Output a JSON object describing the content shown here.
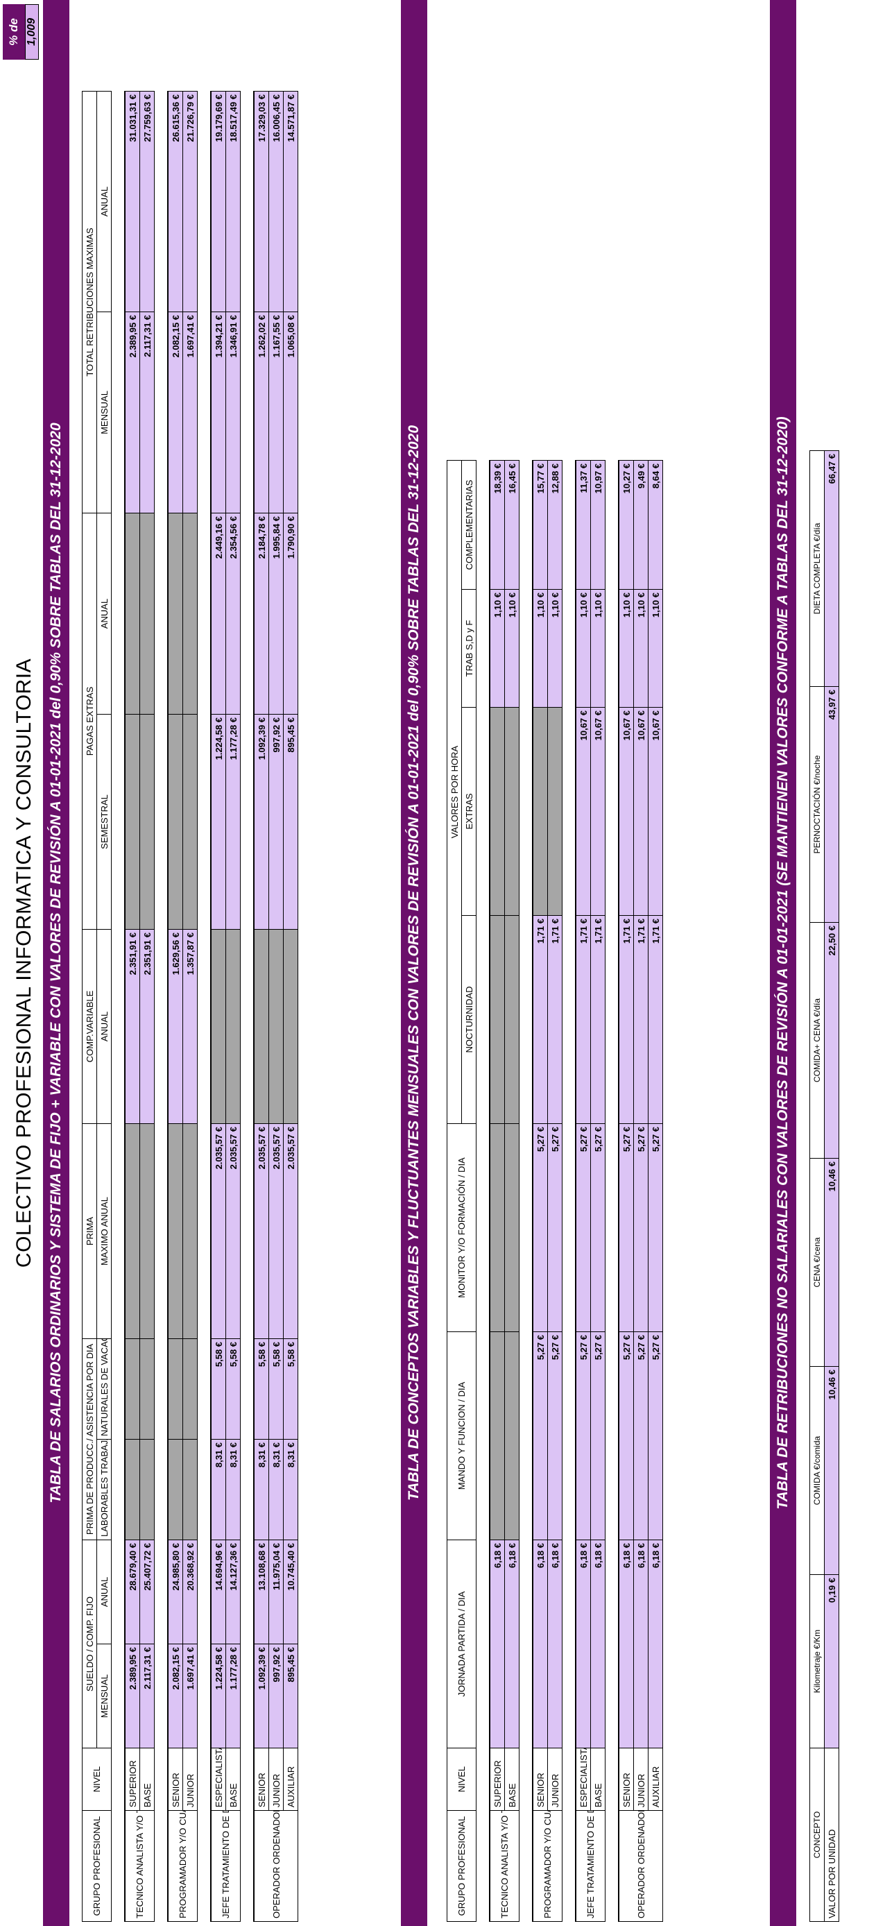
{
  "main_title": "COLECTIVO PROFESIONAL INFORMATICA Y CONSULTORIA",
  "revision": {
    "label": "% de revisión",
    "value": "1,009"
  },
  "table1": {
    "banner": "TABLA DE SALARIOS ORDINARIOS Y SISTEMA DE FIJO + VARIABLE CON VALORES DE REVISIÓN A 01-01-2021 del 0,90% SOBRE TABLAS DEL 31-12-2020",
    "headers": {
      "grupo": "GRUPO PROFESIONAL",
      "nivel": "NIVEL",
      "sueldo": "SUELDO / COMP. FIJO",
      "mensual": "MENSUAL",
      "anual": "ANUAL",
      "prima_prod": "PRIMA DE PRODUCC./ ASISTENCIA POR DIA",
      "laborables": "LABORABLES TRABAJADOS",
      "naturales": "NATURALES DE VACACIONES",
      "prima": "PRIMA",
      "maximo_anual": "MAXIMO ANUAL",
      "comp_variable": "COMP.VARIABLE",
      "cv_anual": "ANUAL",
      "pagas_extras": "PAGAS EXTRAS",
      "semestral": "SEMESTRAL",
      "pe_anual": "ANUAL",
      "total": "TOTAL RETRIBUCIONES MAXIMAS",
      "t_mensual": "MENSUAL",
      "t_anual": "ANUAL"
    },
    "groups": [
      {
        "grupo": "TECNICO ANALISTA Y/O TITULADO",
        "rows": [
          {
            "nivel": "SUPERIOR",
            "mensual": "2.389,95 €",
            "anual": "28.679,40 €",
            "laborables": "",
            "naturales": "",
            "prima": "",
            "cv_anual": "2.351,91 €",
            "semestral": "",
            "pe_anual": "",
            "t_mensual": "2.389,95 €",
            "t_anual": "31.031,31 €"
          },
          {
            "nivel": "BASE",
            "mensual": "2.117,31 €",
            "anual": "25.407,72 €",
            "laborables": "",
            "naturales": "",
            "prima": "",
            "cv_anual": "2.351,91 €",
            "semestral": "",
            "pe_anual": "",
            "t_mensual": "2.117,31 €",
            "t_anual": "27.759,63 €"
          }
        ]
      },
      {
        "grupo": "PROGRAMADOR Y/O CUADRO TECNICO",
        "rows": [
          {
            "nivel": "SENIOR",
            "mensual": "2.082,15 €",
            "anual": "24.985,80 €",
            "laborables": "",
            "naturales": "",
            "prima": "",
            "cv_anual": "1.629,56 €",
            "semestral": "",
            "pe_anual": "",
            "t_mensual": "2.082,15 €",
            "t_anual": "26.615,36 €"
          },
          {
            "nivel": "JUNIOR",
            "mensual": "1.697,41 €",
            "anual": "20.368,92 €",
            "laborables": "",
            "naturales": "",
            "prima": "",
            "cv_anual": "1.357,87 €",
            "semestral": "",
            "pe_anual": "",
            "t_mensual": "1.697,41 €",
            "t_anual": "21.726,79 €"
          }
        ]
      },
      {
        "grupo": "JEFE TRATAMIENTO DE DATOS Y/O ENCUESTAS",
        "rows": [
          {
            "nivel": "ESPECIALISTA",
            "mensual": "1.224,58 €",
            "anual": "14.694,96 €",
            "laborables": "8,31 €",
            "naturales": "5,58 €",
            "prima": "2.035,57 €",
            "cv_anual": "",
            "semestral": "1.224,58 €",
            "pe_anual": "2.449,16 €",
            "t_mensual": "1.394,21 €",
            "t_anual": "19.179,69 €"
          },
          {
            "nivel": "BASE",
            "mensual": "1.177,28 €",
            "anual": "14.127,36 €",
            "laborables": "8,31 €",
            "naturales": "5,58 €",
            "prima": "2.035,57 €",
            "cv_anual": "",
            "semestral": "1.177,28 €",
            "pe_anual": "2.354,56 €",
            "t_mensual": "1.346,91 €",
            "t_anual": "18.517,49 €"
          }
        ]
      },
      {
        "grupo": "OPERADOR ORDENADOR Y/O ENCUESTADOR",
        "rows": [
          {
            "nivel": "SENIOR",
            "mensual": "1.092,39 €",
            "anual": "13.108,68 €",
            "laborables": "8,31 €",
            "naturales": "5,58 €",
            "prima": "2.035,57 €",
            "cv_anual": "",
            "semestral": "1.092,39 €",
            "pe_anual": "2.184,78 €",
            "t_mensual": "1.262,02 €",
            "t_anual": "17.329,03 €"
          },
          {
            "nivel": "JUNIOR",
            "mensual": "997,92 €",
            "anual": "11.975,04 €",
            "laborables": "8,31 €",
            "naturales": "5,58 €",
            "prima": "2.035,57 €",
            "cv_anual": "",
            "semestral": "997,92 €",
            "pe_anual": "1.995,84 €",
            "t_mensual": "1.167,55 €",
            "t_anual": "16.006,45 €"
          },
          {
            "nivel": "AUXILIAR",
            "mensual": "895,45 €",
            "anual": "10.745,40 €",
            "laborables": "8,31 €",
            "naturales": "5,58 €",
            "prima": "2.035,57 €",
            "cv_anual": "",
            "semestral": "895,45 €",
            "pe_anual": "1.790,90 €",
            "t_mensual": "1.065,08 €",
            "t_anual": "14.571,87 €"
          }
        ]
      }
    ]
  },
  "table2": {
    "banner": "TABLA DE CONCEPTOS VARIABLES Y FLUCTUANTES MENSUALES CON VALORES DE REVISIÓN A 01-01-2021 del 0,90% SOBRE TABLAS DEL 31-12-2020",
    "headers": {
      "grupo": "GRUPO PROFESIONAL",
      "nivel": "NIVEL",
      "jornada": "JORNADA PARTIDA / DIA",
      "mando": "MANDO Y FUNCION / DIA",
      "monitor": "MONITOR Y/O FORMACIÓN / DIA",
      "valores_hora": "VALORES POR HORA",
      "nocturnidad": "NOCTURNIDAD",
      "extras": "EXTRAS",
      "trab": "TRAB S,D y F",
      "complementarias": "COMPLEMENTARIAS"
    },
    "groups": [
      {
        "grupo": "TECNICO ANALISTA Y/O TITULADO",
        "rows": [
          {
            "nivel": "SUPERIOR",
            "jornada": "6,18 €",
            "mando": "",
            "monitor": "",
            "nocturnidad": "",
            "extras": "",
            "trab": "1,10 €",
            "complementarias": "18,39 €"
          },
          {
            "nivel": "BASE",
            "jornada": "6,18 €",
            "mando": "",
            "monitor": "",
            "nocturnidad": "",
            "extras": "",
            "trab": "1,10 €",
            "complementarias": "16,45 €"
          }
        ]
      },
      {
        "grupo": "PROGRAMADOR Y/O CUADRO TECNICO",
        "rows": [
          {
            "nivel": "SENIOR",
            "jornada": "6,18 €",
            "mando": "5,27 €",
            "monitor": "5,27 €",
            "nocturnidad": "1,71 €",
            "extras": "",
            "trab": "1,10 €",
            "complementarias": "15,77 €"
          },
          {
            "nivel": "JUNIOR",
            "jornada": "6,18 €",
            "mando": "5,27 €",
            "monitor": "5,27 €",
            "nocturnidad": "1,71 €",
            "extras": "",
            "trab": "1,10 €",
            "complementarias": "12,88 €"
          }
        ]
      },
      {
        "grupo": "JEFE TRATAMIENTO DE DATOS Y/O ENCUESTAS",
        "rows": [
          {
            "nivel": "ESPECIALISTA",
            "jornada": "6,18 €",
            "mando": "5,27 €",
            "monitor": "5,27 €",
            "nocturnidad": "1,71 €",
            "extras": "10,67 €",
            "trab": "1,10 €",
            "complementarias": "11,37 €"
          },
          {
            "nivel": "BASE",
            "jornada": "6,18 €",
            "mando": "5,27 €",
            "monitor": "5,27 €",
            "nocturnidad": "1,71 €",
            "extras": "10,67 €",
            "trab": "1,10 €",
            "complementarias": "10,97 €"
          }
        ]
      },
      {
        "grupo": "OPERADOR ORDENADOR Y/O ENCUESTADOR",
        "rows": [
          {
            "nivel": "SENIOR",
            "jornada": "6,18 €",
            "mando": "5,27 €",
            "monitor": "5,27 €",
            "nocturnidad": "1,71 €",
            "extras": "10,67 €",
            "trab": "1,10 €",
            "complementarias": "10,27 €"
          },
          {
            "nivel": "JUNIOR",
            "jornada": "6,18 €",
            "mando": "5,27 €",
            "monitor": "5,27 €",
            "nocturnidad": "1,71 €",
            "extras": "10,67 €",
            "trab": "1,10 €",
            "complementarias": "9,49 €"
          },
          {
            "nivel": "AUXILIAR",
            "jornada": "6,18 €",
            "mando": "5,27 €",
            "monitor": "5,27 €",
            "nocturnidad": "1,71 €",
            "extras": "10,67 €",
            "trab": "1,10 €",
            "complementarias": "8,64 €"
          }
        ]
      }
    ]
  },
  "table3": {
    "banner": "TABLA DE RETRIBUCIONES NO SALARIALES CON VALORES DE REVISIÓN A 01-01-2021 (SE MANTIENEN VALORES CONFORME A TABLAS DEL 31-12-2020)",
    "columns": [
      "CONCEPTO",
      "Kilometraje €/Km",
      "COMIDA €/comida",
      "CENA €/cena",
      "COMIDA+ CENA €/día",
      "PERNOCTACIÓN €/noche",
      "DIETA COMPLETA €/día"
    ],
    "row_label": "VALOR POR UNIDAD",
    "values": [
      "0,19 €",
      "10,46 €",
      "10,46 €",
      "22,50 €",
      "43,97 €",
      "66,47 €"
    ]
  }
}
